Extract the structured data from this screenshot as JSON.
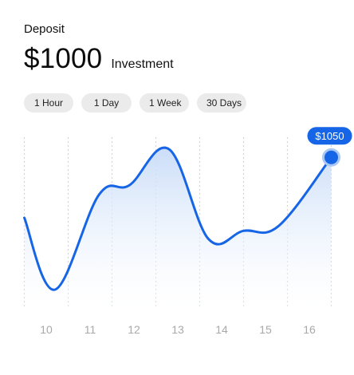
{
  "header": {
    "label": "Deposit",
    "amount": "$1000",
    "amount_caption": "Investment"
  },
  "ranges": [
    {
      "label": "1 Hour"
    },
    {
      "label": "1 Day"
    },
    {
      "label": "1 Week"
    },
    {
      "label": "30 Days"
    }
  ],
  "tooltip": {
    "text": "$1050"
  },
  "colors": {
    "accent": "#1565e6",
    "area_top": "#c7dbf8",
    "grid": "#d4d4d4",
    "chip_bg": "#ebebeb"
  },
  "chart_data": {
    "type": "area",
    "x_labels": [
      "10",
      "11",
      "12",
      "13",
      "14",
      "15",
      "16"
    ],
    "points": [
      {
        "x": 9.5,
        "y": 0.58
      },
      {
        "x": 10.2,
        "y": 0.14
      },
      {
        "x": 11.2,
        "y": 0.72
      },
      {
        "x": 11.9,
        "y": 0.78
      },
      {
        "x": 12.8,
        "y": 1.0
      },
      {
        "x": 13.7,
        "y": 0.45
      },
      {
        "x": 14.5,
        "y": 0.5
      },
      {
        "x": 15.3,
        "y": 0.53
      },
      {
        "x": 16.5,
        "y": 0.95
      }
    ],
    "highlight_index": 8,
    "grid": true
  }
}
